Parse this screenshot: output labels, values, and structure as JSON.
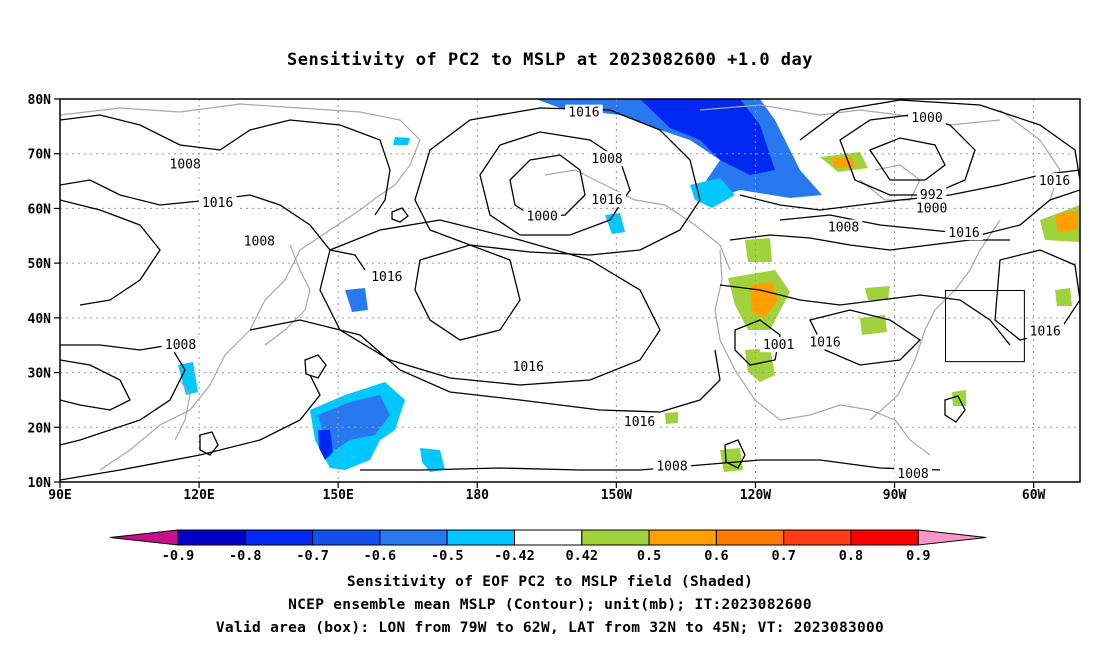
{
  "title": "Sensitivity of PC2 to MSLP at 2023082600 +1.0 day",
  "captions": [
    "Sensitivity of EOF PC2 to MSLP field (Shaded)",
    "NCEP ensemble mean MSLP (Contour); unit(mb); IT:2023082600",
    "Valid area (box): LON from 79W to 62W, LAT from 32N to 45N; VT: 2023083000"
  ],
  "map": {
    "lon_range": [
      90,
      310
    ],
    "lat_range": [
      10,
      80
    ],
    "lat_ticks": [
      {
        "value": 80,
        "label": "80N"
      },
      {
        "value": 70,
        "label": "70N"
      },
      {
        "value": 60,
        "label": "60N"
      },
      {
        "value": 50,
        "label": "50N"
      },
      {
        "value": 40,
        "label": "40N"
      },
      {
        "value": 30,
        "label": "30N"
      },
      {
        "value": 20,
        "label": "20N"
      },
      {
        "value": 10,
        "label": "10N"
      }
    ],
    "lon_ticks": [
      {
        "value": 90,
        "label": "90E"
      },
      {
        "value": 120,
        "label": "120E"
      },
      {
        "value": 150,
        "label": "150E"
      },
      {
        "value": 180,
        "label": "180"
      },
      {
        "value": 210,
        "label": "150W"
      },
      {
        "value": 240,
        "label": "120W"
      },
      {
        "value": 270,
        "label": "90W"
      },
      {
        "value": 300,
        "label": "60W"
      }
    ],
    "valid_box": {
      "lon_west": 281,
      "lon_east": 298,
      "lat_south": 32,
      "lat_north": 45
    },
    "contour_labels": [
      {
        "text": "1016",
        "lon": 203,
        "lat": 77.5
      },
      {
        "text": "1000",
        "lon": 277,
        "lat": 76.5
      },
      {
        "text": "1008",
        "lon": 117,
        "lat": 68
      },
      {
        "text": "1008",
        "lon": 208,
        "lat": 69
      },
      {
        "text": "1016",
        "lon": 124,
        "lat": 61
      },
      {
        "text": "992",
        "lon": 278,
        "lat": 62.5
      },
      {
        "text": "1000",
        "lon": 278,
        "lat": 60
      },
      {
        "text": "1016",
        "lon": 304.5,
        "lat": 65
      },
      {
        "text": "1000",
        "lon": 194,
        "lat": 58.5
      },
      {
        "text": "1016",
        "lon": 208,
        "lat": 61.5
      },
      {
        "text": "1008",
        "lon": 133,
        "lat": 54
      },
      {
        "text": "1008",
        "lon": 259,
        "lat": 56.5
      },
      {
        "text": "1016",
        "lon": 285,
        "lat": 55.5
      },
      {
        "text": "1016",
        "lon": 160.5,
        "lat": 47.5
      },
      {
        "text": "1016",
        "lon": 302.5,
        "lat": 37.5
      },
      {
        "text": "1008",
        "lon": 116,
        "lat": 35
      },
      {
        "text": "1016",
        "lon": 255,
        "lat": 35.5
      },
      {
        "text": "1001",
        "lon": 245,
        "lat": 35
      },
      {
        "text": "1016",
        "lon": 191,
        "lat": 31
      },
      {
        "text": "1016",
        "lon": 215,
        "lat": 21
      },
      {
        "text": "1008",
        "lon": 222,
        "lat": 12.8
      },
      {
        "text": "1008",
        "lon": 274,
        "lat": 11.5
      }
    ]
  },
  "colorbar": {
    "labels": [
      "-0.9",
      "-0.8",
      "-0.7",
      "-0.6",
      "-0.5",
      "-0.42",
      "0.42",
      "0.5",
      "0.6",
      "0.7",
      "0.8",
      "0.9"
    ],
    "colors": [
      "#0000c8",
      "#0028f0",
      "#1450f0",
      "#2878f0",
      "#00c8ff",
      "#ffffff",
      "#a0d23c",
      "#ffa000",
      "#ff7800",
      "#ff3c14",
      "#ff0000"
    ],
    "low_end_color": "#c8108c",
    "high_end_color": "#ff96c8"
  }
}
